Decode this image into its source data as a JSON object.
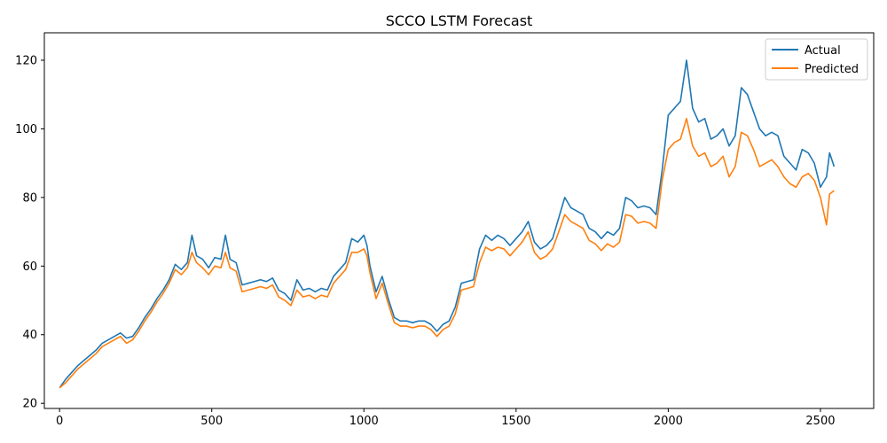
{
  "chart_data": {
    "type": "line",
    "title": "SCCO LSTM Forecast",
    "xlabel": "",
    "ylabel": "",
    "xlim": [
      -50,
      2675
    ],
    "ylim": [
      18.5,
      128
    ],
    "x_ticks": [
      0,
      500,
      1000,
      1500,
      2000,
      2500
    ],
    "y_ticks": [
      20,
      40,
      60,
      80,
      100,
      120
    ],
    "grid": false,
    "legend_position": "top-right",
    "series": [
      {
        "name": "Actual",
        "color": "#1f77b4",
        "points": [
          [
            0,
            24.5
          ],
          [
            20,
            27
          ],
          [
            40,
            29
          ],
          [
            60,
            31
          ],
          [
            80,
            32.5
          ],
          [
            100,
            34
          ],
          [
            120,
            35.5
          ],
          [
            140,
            37.5
          ],
          [
            160,
            38.5
          ],
          [
            180,
            39.5
          ],
          [
            200,
            40.5
          ],
          [
            220,
            39
          ],
          [
            240,
            39.5
          ],
          [
            260,
            42
          ],
          [
            280,
            45
          ],
          [
            300,
            47.5
          ],
          [
            320,
            50.5
          ],
          [
            340,
            53
          ],
          [
            360,
            56
          ],
          [
            380,
            60.5
          ],
          [
            400,
            59
          ],
          [
            420,
            61
          ],
          [
            435,
            69
          ],
          [
            450,
            63
          ],
          [
            470,
            62
          ],
          [
            490,
            59.5
          ],
          [
            510,
            62.5
          ],
          [
            530,
            62
          ],
          [
            545,
            69
          ],
          [
            560,
            62
          ],
          [
            580,
            61
          ],
          [
            600,
            54.5
          ],
          [
            620,
            55
          ],
          [
            640,
            55.5
          ],
          [
            660,
            56
          ],
          [
            680,
            55.5
          ],
          [
            700,
            56.5
          ],
          [
            720,
            53
          ],
          [
            740,
            52
          ],
          [
            760,
            50
          ],
          [
            780,
            56
          ],
          [
            800,
            53
          ],
          [
            820,
            53.5
          ],
          [
            840,
            52.5
          ],
          [
            860,
            53.5
          ],
          [
            880,
            53
          ],
          [
            900,
            57
          ],
          [
            920,
            59
          ],
          [
            940,
            61
          ],
          [
            960,
            68
          ],
          [
            980,
            67
          ],
          [
            1000,
            69
          ],
          [
            1010,
            66
          ],
          [
            1020,
            60
          ],
          [
            1040,
            52.5
          ],
          [
            1060,
            57
          ],
          [
            1080,
            50.5
          ],
          [
            1100,
            45
          ],
          [
            1120,
            44
          ],
          [
            1140,
            44
          ],
          [
            1160,
            43.5
          ],
          [
            1180,
            44
          ],
          [
            1200,
            44
          ],
          [
            1220,
            43
          ],
          [
            1240,
            41
          ],
          [
            1260,
            43
          ],
          [
            1280,
            44
          ],
          [
            1300,
            48
          ],
          [
            1320,
            55
          ],
          [
            1340,
            55.5
          ],
          [
            1360,
            56
          ],
          [
            1380,
            65
          ],
          [
            1400,
            69
          ],
          [
            1420,
            67.5
          ],
          [
            1440,
            69
          ],
          [
            1460,
            68
          ],
          [
            1480,
            66
          ],
          [
            1500,
            68
          ],
          [
            1520,
            70
          ],
          [
            1540,
            73
          ],
          [
            1560,
            67
          ],
          [
            1580,
            65
          ],
          [
            1600,
            66
          ],
          [
            1620,
            68
          ],
          [
            1640,
            74
          ],
          [
            1660,
            80
          ],
          [
            1680,
            77
          ],
          [
            1700,
            76
          ],
          [
            1720,
            75
          ],
          [
            1740,
            71
          ],
          [
            1760,
            70
          ],
          [
            1780,
            68
          ],
          [
            1800,
            70
          ],
          [
            1820,
            69
          ],
          [
            1840,
            71
          ],
          [
            1860,
            80
          ],
          [
            1880,
            79
          ],
          [
            1900,
            77
          ],
          [
            1920,
            77.5
          ],
          [
            1940,
            77
          ],
          [
            1960,
            75
          ],
          [
            1980,
            88
          ],
          [
            2000,
            104
          ],
          [
            2020,
            106
          ],
          [
            2040,
            108
          ],
          [
            2060,
            120
          ],
          [
            2080,
            106
          ],
          [
            2100,
            102
          ],
          [
            2120,
            103
          ],
          [
            2140,
            97
          ],
          [
            2160,
            98
          ],
          [
            2180,
            100
          ],
          [
            2200,
            95
          ],
          [
            2220,
            98
          ],
          [
            2240,
            112
          ],
          [
            2260,
            110
          ],
          [
            2280,
            105
          ],
          [
            2300,
            100
          ],
          [
            2320,
            98
          ],
          [
            2340,
            99
          ],
          [
            2360,
            98
          ],
          [
            2380,
            92
          ],
          [
            2400,
            90
          ],
          [
            2420,
            88
          ],
          [
            2440,
            94
          ],
          [
            2460,
            93
          ],
          [
            2480,
            90
          ],
          [
            2500,
            83
          ],
          [
            2520,
            86
          ],
          [
            2530,
            93
          ],
          [
            2545,
            89
          ]
        ]
      },
      {
        "name": "Predicted",
        "color": "#ff7f0e",
        "points": [
          [
            0,
            24.5
          ],
          [
            20,
            26
          ],
          [
            40,
            28
          ],
          [
            60,
            30
          ],
          [
            80,
            31.5
          ],
          [
            100,
            33
          ],
          [
            120,
            34.5
          ],
          [
            140,
            36.5
          ],
          [
            160,
            37.5
          ],
          [
            180,
            38.5
          ],
          [
            200,
            39.5
          ],
          [
            220,
            37.5
          ],
          [
            240,
            38.5
          ],
          [
            260,
            41
          ],
          [
            280,
            44
          ],
          [
            300,
            46.5
          ],
          [
            320,
            49.5
          ],
          [
            340,
            52
          ],
          [
            360,
            55
          ],
          [
            380,
            59
          ],
          [
            400,
            57.5
          ],
          [
            420,
            59.5
          ],
          [
            435,
            64
          ],
          [
            450,
            61
          ],
          [
            470,
            59.5
          ],
          [
            490,
            57.5
          ],
          [
            510,
            60
          ],
          [
            530,
            59.5
          ],
          [
            545,
            64
          ],
          [
            560,
            59.5
          ],
          [
            580,
            58.5
          ],
          [
            600,
            52.5
          ],
          [
            620,
            53
          ],
          [
            640,
            53.5
          ],
          [
            660,
            54
          ],
          [
            680,
            53.5
          ],
          [
            700,
            54.5
          ],
          [
            720,
            51
          ],
          [
            740,
            50
          ],
          [
            760,
            48.5
          ],
          [
            780,
            53
          ],
          [
            800,
            51
          ],
          [
            820,
            51.5
          ],
          [
            840,
            50.5
          ],
          [
            860,
            51.5
          ],
          [
            880,
            51
          ],
          [
            900,
            55
          ],
          [
            920,
            57
          ],
          [
            940,
            59
          ],
          [
            960,
            64
          ],
          [
            980,
            64
          ],
          [
            1000,
            65
          ],
          [
            1010,
            63
          ],
          [
            1020,
            58
          ],
          [
            1040,
            50.5
          ],
          [
            1060,
            55
          ],
          [
            1080,
            49
          ],
          [
            1100,
            43.5
          ],
          [
            1120,
            42.5
          ],
          [
            1140,
            42.5
          ],
          [
            1160,
            42
          ],
          [
            1180,
            42.5
          ],
          [
            1200,
            42.5
          ],
          [
            1220,
            41.5
          ],
          [
            1240,
            39.5
          ],
          [
            1260,
            41.5
          ],
          [
            1280,
            42.5
          ],
          [
            1300,
            46
          ],
          [
            1320,
            53
          ],
          [
            1340,
            53.5
          ],
          [
            1360,
            54
          ],
          [
            1380,
            61
          ],
          [
            1400,
            65.5
          ],
          [
            1420,
            64.5
          ],
          [
            1440,
            65.5
          ],
          [
            1460,
            65
          ],
          [
            1480,
            63
          ],
          [
            1500,
            65
          ],
          [
            1520,
            67
          ],
          [
            1540,
            70
          ],
          [
            1560,
            64
          ],
          [
            1580,
            62
          ],
          [
            1600,
            63
          ],
          [
            1620,
            65
          ],
          [
            1640,
            70
          ],
          [
            1660,
            75
          ],
          [
            1680,
            73
          ],
          [
            1700,
            72
          ],
          [
            1720,
            71
          ],
          [
            1740,
            67.5
          ],
          [
            1760,
            66.5
          ],
          [
            1780,
            64.5
          ],
          [
            1800,
            66.5
          ],
          [
            1820,
            65.5
          ],
          [
            1840,
            67
          ],
          [
            1860,
            75
          ],
          [
            1880,
            74.5
          ],
          [
            1900,
            72.5
          ],
          [
            1920,
            73
          ],
          [
            1940,
            72.5
          ],
          [
            1960,
            71
          ],
          [
            1980,
            85
          ],
          [
            2000,
            94
          ],
          [
            2020,
            96
          ],
          [
            2040,
            97
          ],
          [
            2060,
            103
          ],
          [
            2080,
            95
          ],
          [
            2100,
            92
          ],
          [
            2120,
            93
          ],
          [
            2140,
            89
          ],
          [
            2160,
            90
          ],
          [
            2180,
            92
          ],
          [
            2200,
            86
          ],
          [
            2220,
            89
          ],
          [
            2240,
            99
          ],
          [
            2260,
            98
          ],
          [
            2280,
            94
          ],
          [
            2300,
            89
          ],
          [
            2320,
            90
          ],
          [
            2340,
            91
          ],
          [
            2360,
            89
          ],
          [
            2380,
            86
          ],
          [
            2400,
            84
          ],
          [
            2420,
            83
          ],
          [
            2440,
            86
          ],
          [
            2460,
            87
          ],
          [
            2480,
            85
          ],
          [
            2500,
            80
          ],
          [
            2520,
            72
          ],
          [
            2530,
            81
          ],
          [
            2545,
            82
          ]
        ]
      }
    ]
  }
}
